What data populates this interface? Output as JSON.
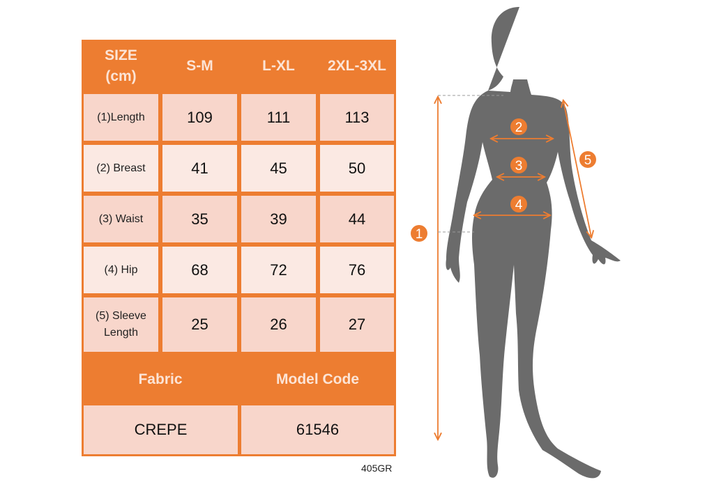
{
  "table": {
    "header": [
      "SIZE\n(cm)",
      "S-M",
      "L-XL",
      "2XL-3XL"
    ],
    "header_size": "SIZE",
    "header_unit": "(cm)",
    "sizes": [
      "S-M",
      "L-XL",
      "2XL-3XL"
    ],
    "rows": [
      {
        "label": "(1)Length",
        "values": [
          "109",
          "111",
          "113"
        ]
      },
      {
        "label": "(2) Breast",
        "values": [
          "41",
          "45",
          "50"
        ]
      },
      {
        "label": "(3) Waist",
        "values": [
          "35",
          "39",
          "44"
        ]
      },
      {
        "label": "(4) Hip",
        "values": [
          "68",
          "72",
          "76"
        ]
      },
      {
        "label": "(5) Sleeve Length",
        "values": [
          "25",
          "26",
          "27"
        ]
      }
    ],
    "footer_headers": [
      "Fabric",
      "Model Code"
    ],
    "footer_values": [
      "CREPE",
      "61546"
    ]
  },
  "product_code": "405GR",
  "figure": {
    "markers": [
      "1",
      "2",
      "3",
      "4",
      "5"
    ]
  },
  "colors": {
    "accent": "#ED7D31",
    "header_text": "#FCE4D6",
    "row_dark": "#F8D6CB",
    "row_light": "#FBE9E3",
    "silhouette": "#6B6B6B"
  }
}
